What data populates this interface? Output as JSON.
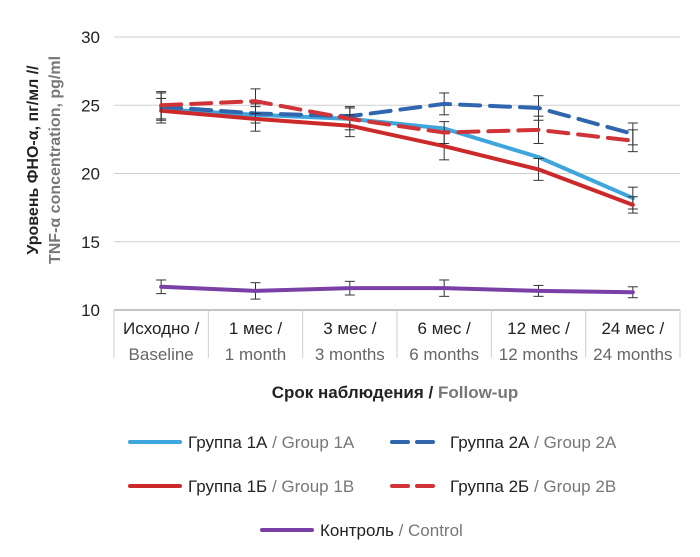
{
  "chart_data": {
    "type": "line",
    "ylabel": {
      "ru": "Уровень ФНО-α, пг/мл //",
      "en": "TNF-α concentration, pg/ml"
    },
    "xlabel": {
      "ru": "Срок наблюдения / ",
      "en": "Follow-up"
    },
    "ylim": [
      10,
      30
    ],
    "yticks": [
      "10",
      "15",
      "20",
      "25",
      "30"
    ],
    "categories": [
      {
        "ru": "Исходно /",
        "en": "Baseline"
      },
      {
        "ru": "1 мес /",
        "en": "1 month"
      },
      {
        "ru": "3 мес /",
        "en": "3 months"
      },
      {
        "ru": "6 мес /",
        "en": "6 months"
      },
      {
        "ru": "12 мес /",
        "en": "12 months"
      },
      {
        "ru": "24 мес /",
        "en": "24 months"
      }
    ],
    "grid": "horizontal",
    "legend_position": "bottom",
    "series": [
      {
        "id": "g1a",
        "name_ru": "Группа 1А",
        "name_en": " / Group 1A",
        "color": "#3ea6dc",
        "dash": false,
        "values": [
          24.7,
          24.3,
          24.0,
          23.3,
          21.2,
          18.2
        ],
        "err": [
          0,
          0,
          0,
          0,
          0,
          0.8
        ]
      },
      {
        "id": "g2a",
        "name_ru": "Группа 2А",
        "name_en": " / Group 2A",
        "color": "#2f66ad",
        "dash": true,
        "values": [
          24.9,
          24.4,
          24.2,
          25.1,
          24.8,
          22.9
        ],
        "err": [
          1.0,
          0.7,
          0.7,
          0.8,
          0.9,
          0.8
        ]
      },
      {
        "id": "g1b",
        "name_ru": "Группа 1Б",
        "name_en": " / Group 1B",
        "color": "#cc2a2a",
        "dash": false,
        "values": [
          24.6,
          24.0,
          23.5,
          22.0,
          20.3,
          17.7
        ],
        "err": [
          0.9,
          0.9,
          0.8,
          1.0,
          0.8,
          0.6
        ]
      },
      {
        "id": "g2b",
        "name_ru": "Группа 2Б",
        "name_en": " / Group 2B",
        "color": "#d03438",
        "dash": true,
        "values": [
          25.0,
          25.3,
          24.0,
          23.0,
          23.2,
          22.4
        ],
        "err": [
          1.0,
          0.9,
          0.8,
          0.8,
          1.0,
          0.8
        ]
      },
      {
        "id": "ctrl",
        "name_ru": "Контроль",
        "name_en": " / Control",
        "color": "#7a40a6",
        "dash": false,
        "values": [
          11.7,
          11.4,
          11.6,
          11.6,
          11.4,
          11.3
        ],
        "err": [
          0.5,
          0.6,
          0.5,
          0.6,
          0.4,
          0.4
        ]
      }
    ]
  }
}
